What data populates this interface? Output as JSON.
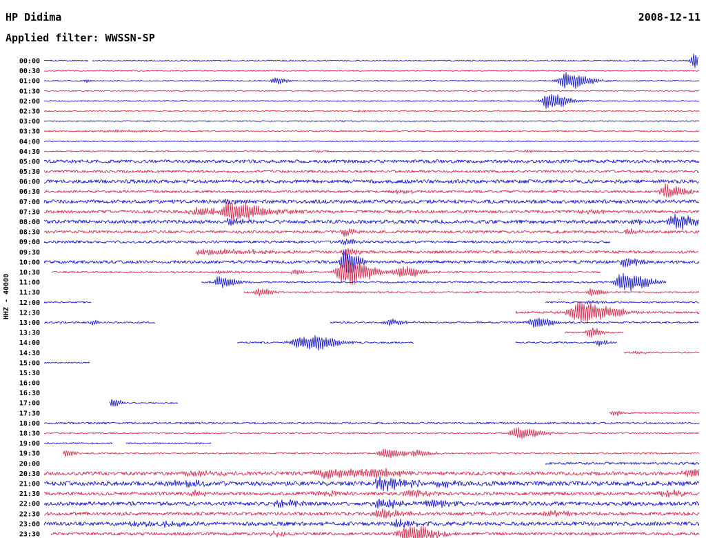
{
  "header": {
    "station": "HP Didima",
    "date": "2008-12-11",
    "filter_line": "Applied filter: WWSSN-SP"
  },
  "chart_data": {
    "type": "line",
    "title": "HP Didima",
    "subtitle": "Applied filter: WWSSN-SP",
    "date": "2008-12-11",
    "y_label": "HHZ - 40000",
    "row_interval_minutes": 30,
    "time_span": "00:00 - 23:30",
    "grid": false,
    "legend": "none",
    "palette": {
      "blue": "#0000cd",
      "red": "#d4143c"
    },
    "rows": [
      {
        "time": "00:00",
        "color": "blue",
        "noise": 0.9,
        "segments": [
          [
            0,
            0.068
          ],
          [
            0.074,
            1
          ]
        ],
        "events": [
          {
            "x": 0.993,
            "a": 13,
            "w": 0.004
          }
        ]
      },
      {
        "time": "00:30",
        "color": "red",
        "noise": 0.8
      },
      {
        "time": "01:00",
        "color": "blue",
        "noise": 0.8,
        "events": [
          {
            "x": 0.063,
            "a": 2.5,
            "w": 0.002
          },
          {
            "x": 0.352,
            "a": 6,
            "w": 0.004
          },
          {
            "x": 0.796,
            "a": 14,
            "w": 0.008
          }
        ]
      },
      {
        "time": "01:30",
        "color": "red",
        "noise": 0.8
      },
      {
        "time": "02:00",
        "color": "blue",
        "noise": 0.8,
        "events": [
          {
            "x": 0.769,
            "a": 13,
            "w": 0.007
          }
        ]
      },
      {
        "time": "02:30",
        "color": "red",
        "noise": 0.8,
        "events": [
          {
            "x": 0.48,
            "a": 1.5,
            "w": 0.003
          }
        ]
      },
      {
        "time": "03:00",
        "color": "blue",
        "noise": 0.8
      },
      {
        "time": "03:30",
        "color": "red",
        "noise": 0.9,
        "events": [
          {
            "x": 0.1,
            "a": 1.5,
            "w": 0.02
          }
        ]
      },
      {
        "time": "04:00",
        "color": "blue",
        "noise": 0.8
      },
      {
        "time": "04:30",
        "color": "red",
        "noise": 0.9,
        "events": [
          {
            "x": 0.42,
            "a": 1.5,
            "w": 0.004
          },
          {
            "x": 0.737,
            "a": 1.8,
            "w": 0.003
          }
        ]
      },
      {
        "time": "05:00",
        "color": "blue",
        "noise": 2.4
      },
      {
        "time": "05:30",
        "color": "red",
        "noise": 1.8
      },
      {
        "time": "06:00",
        "color": "blue",
        "noise": 2.6
      },
      {
        "time": "06:30",
        "color": "red",
        "noise": 1.8,
        "events": [
          {
            "x": 0.54,
            "a": 3,
            "w": 0.006
          },
          {
            "x": 0.951,
            "a": 11,
            "w": 0.007
          }
        ]
      },
      {
        "time": "07:00",
        "color": "blue",
        "noise": 2.6,
        "events": [
          {
            "x": 0.28,
            "a": 3,
            "w": 0.004
          }
        ]
      },
      {
        "time": "07:30",
        "color": "red",
        "noise": 2.2,
        "events": [
          {
            "x": 0.237,
            "a": 5,
            "w": 0.01
          },
          {
            "x": 0.282,
            "a": 17,
            "w": 0.008
          },
          {
            "x": 0.322,
            "a": 5,
            "w": 0.012
          },
          {
            "x": 0.83,
            "a": 3.5,
            "w": 0.008
          }
        ]
      },
      {
        "time": "08:00",
        "color": "blue",
        "noise": 2.6,
        "events": [
          {
            "x": 0.282,
            "a": 5,
            "w": 0.006
          },
          {
            "x": 0.9,
            "a": 4,
            "w": 0.006
          },
          {
            "x": 0.962,
            "a": 13,
            "w": 0.007
          }
        ]
      },
      {
        "time": "08:30",
        "color": "red",
        "noise": 2.0,
        "events": [
          {
            "x": 0.459,
            "a": 7,
            "w": 0.004
          },
          {
            "x": 0.893,
            "a": 4,
            "w": 0.005
          }
        ]
      },
      {
        "time": "09:00",
        "color": "blue",
        "noise": 1.8,
        "segments": [
          [
            0,
            0.865
          ]
        ],
        "events": [
          {
            "x": 0.459,
            "a": 5,
            "w": 0.004
          }
        ]
      },
      {
        "time": "09:30",
        "color": "red",
        "noise": 2.0,
        "segments": [
          [
            0.232,
            1
          ]
        ],
        "events": [
          {
            "x": 0.248,
            "a": 4,
            "w": 0.02
          },
          {
            "x": 0.459,
            "a": 7,
            "w": 0.004
          }
        ]
      },
      {
        "time": "10:00",
        "color": "blue",
        "noise": 2.2,
        "events": [
          {
            "x": 0.459,
            "a": 20,
            "w": 0.005
          },
          {
            "x": 0.888,
            "a": 9,
            "w": 0.005
          }
        ]
      },
      {
        "time": "10:30",
        "color": "red",
        "noise": 1.2,
        "segments": [
          [
            0.012,
            0.85
          ]
        ],
        "events": [
          {
            "x": 0.27,
            "a": 3,
            "w": 0.005
          },
          {
            "x": 0.383,
            "a": 3.5,
            "w": 0.005
          },
          {
            "x": 0.459,
            "a": 22,
            "w": 0.009
          },
          {
            "x": 0.545,
            "a": 9,
            "w": 0.008
          }
        ]
      },
      {
        "time": "11:00",
        "color": "blue",
        "noise": 1.2,
        "segments": [
          [
            0.24,
            0.95
          ]
        ],
        "events": [
          {
            "x": 0.268,
            "a": 10,
            "w": 0.006
          },
          {
            "x": 0.885,
            "a": 15,
            "w": 0.009
          }
        ]
      },
      {
        "time": "11:30",
        "color": "red",
        "noise": 1.2,
        "segments": [
          [
            0.305,
            1
          ]
        ],
        "events": [
          {
            "x": 0.325,
            "a": 6,
            "w": 0.005
          },
          {
            "x": 0.835,
            "a": 7,
            "w": 0.004
          }
        ]
      },
      {
        "time": "12:00",
        "color": "blue",
        "noise": 1.1,
        "segments": [
          [
            0,
            0.072
          ],
          [
            0.765,
            1
          ]
        ],
        "events": [
          {
            "x": 0.83,
            "a": 3,
            "w": 0.004
          }
        ]
      },
      {
        "time": "12:30",
        "color": "red",
        "noise": 1.6,
        "segments": [
          [
            0.72,
            1
          ]
        ],
        "events": [
          {
            "x": 0.818,
            "a": 17,
            "w": 0.012
          }
        ]
      },
      {
        "time": "13:00",
        "color": "blue",
        "noise": 1.2,
        "segments": [
          [
            0,
            0.17
          ],
          [
            0.437,
            1
          ]
        ],
        "events": [
          {
            "x": 0.073,
            "a": 4,
            "w": 0.002
          },
          {
            "x": 0.527,
            "a": 5,
            "w": 0.006
          },
          {
            "x": 0.75,
            "a": 8,
            "w": 0.007
          }
        ]
      },
      {
        "time": "13:30",
        "color": "red",
        "noise": 1.0,
        "segments": [
          [
            0.795,
            0.885
          ]
        ],
        "events": [
          {
            "x": 0.833,
            "a": 9,
            "w": 0.004
          }
        ]
      },
      {
        "time": "14:00",
        "color": "blue",
        "noise": 1.2,
        "segments": [
          [
            0.295,
            0.565
          ],
          [
            0.72,
            0.875
          ]
        ],
        "events": [
          {
            "x": 0.39,
            "a": 9,
            "w": 0.01
          },
          {
            "x": 0.417,
            "a": 8,
            "w": 0.008
          },
          {
            "x": 0.845,
            "a": 5,
            "w": 0.003
          }
        ]
      },
      {
        "time": "14:30",
        "color": "red",
        "noise": 1.0,
        "segments": [
          [
            0.885,
            1
          ]
        ],
        "events": [
          {
            "x": 0.9,
            "a": 2,
            "w": 0.004
          }
        ]
      },
      {
        "time": "15:00",
        "color": "blue",
        "noise": 0.9,
        "segments": [
          [
            0,
            0.07
          ]
        ]
      },
      {
        "time": "15:30",
        "color": "red",
        "noise": 0.8,
        "segments": []
      },
      {
        "time": "16:00",
        "color": "blue",
        "noise": 0.8,
        "segments": []
      },
      {
        "time": "16:30",
        "color": "red",
        "noise": 0.8,
        "segments": []
      },
      {
        "time": "17:00",
        "color": "blue",
        "noise": 1.0,
        "segments": [
          [
            0.1,
            0.205
          ]
        ],
        "events": [
          {
            "x": 0.105,
            "a": 8,
            "w": 0.003
          }
        ]
      },
      {
        "time": "17:30",
        "color": "red",
        "noise": 1.0,
        "segments": [
          [
            0.863,
            1
          ]
        ],
        "events": [
          {
            "x": 0.87,
            "a": 4,
            "w": 0.003
          }
        ]
      },
      {
        "time": "18:00",
        "color": "blue",
        "noise": 1.4
      },
      {
        "time": "18:30",
        "color": "red",
        "noise": 1.0,
        "events": [
          {
            "x": 0.722,
            "a": 10,
            "w": 0.008
          }
        ]
      },
      {
        "time": "19:00",
        "color": "blue",
        "noise": 1.0,
        "segments": [
          [
            0,
            0.105
          ],
          [
            0.125,
            0.255
          ]
        ]
      },
      {
        "time": "19:30",
        "color": "red",
        "noise": 1.1,
        "segments": [
          [
            0.028,
            1
          ]
        ],
        "events": [
          {
            "x": 0.033,
            "a": 6,
            "w": 0.003
          },
          {
            "x": 0.52,
            "a": 8,
            "w": 0.007
          },
          {
            "x": 0.565,
            "a": 6,
            "w": 0.006
          }
        ]
      },
      {
        "time": "20:00",
        "color": "blue",
        "noise": 1.8,
        "segments": [
          [
            0.765,
            1
          ]
        ]
      },
      {
        "time": "20:30",
        "color": "red",
        "noise": 2.6,
        "events": [
          {
            "x": 0.225,
            "a": 4,
            "w": 0.01
          },
          {
            "x": 0.43,
            "a": 7,
            "w": 0.015
          },
          {
            "x": 0.5,
            "a": 7,
            "w": 0.01
          },
          {
            "x": 0.985,
            "a": 7,
            "w": 0.006
          }
        ]
      },
      {
        "time": "21:00",
        "color": "blue",
        "noise": 3.2,
        "events": [
          {
            "x": 0.205,
            "a": 5,
            "w": 0.01
          },
          {
            "x": 0.515,
            "a": 11,
            "w": 0.01
          },
          {
            "x": 0.6,
            "a": 5,
            "w": 0.008
          }
        ]
      },
      {
        "time": "21:30",
        "color": "red",
        "noise": 2.4,
        "events": [
          {
            "x": 0.23,
            "a": 4,
            "w": 0.008
          },
          {
            "x": 0.42,
            "a": 4,
            "w": 0.008
          },
          {
            "x": 0.56,
            "a": 5,
            "w": 0.008
          },
          {
            "x": 0.945,
            "a": 6,
            "w": 0.006
          }
        ]
      },
      {
        "time": "22:00",
        "color": "blue",
        "noise": 2.8,
        "events": [
          {
            "x": 0.36,
            "a": 5,
            "w": 0.008
          },
          {
            "x": 0.515,
            "a": 6,
            "w": 0.008
          },
          {
            "x": 0.59,
            "a": 5,
            "w": 0.008
          }
        ]
      },
      {
        "time": "22:30",
        "color": "red",
        "noise": 2.4,
        "events": [
          {
            "x": 0.515,
            "a": 7,
            "w": 0.008
          },
          {
            "x": 0.775,
            "a": 4,
            "w": 0.008
          }
        ]
      },
      {
        "time": "23:00",
        "color": "blue",
        "noise": 2.8,
        "events": [
          {
            "x": 0.14,
            "a": 4,
            "w": 0.006
          },
          {
            "x": 0.185,
            "a": 4,
            "w": 0.006
          },
          {
            "x": 0.54,
            "a": 6,
            "w": 0.008
          }
        ]
      },
      {
        "time": "23:30",
        "color": "red",
        "noise": 2.2,
        "segments": [
          [
            0.01,
            1
          ]
        ],
        "events": [
          {
            "x": 0.35,
            "a": 3,
            "w": 0.006
          },
          {
            "x": 0.555,
            "a": 13,
            "w": 0.01
          }
        ]
      }
    ]
  }
}
